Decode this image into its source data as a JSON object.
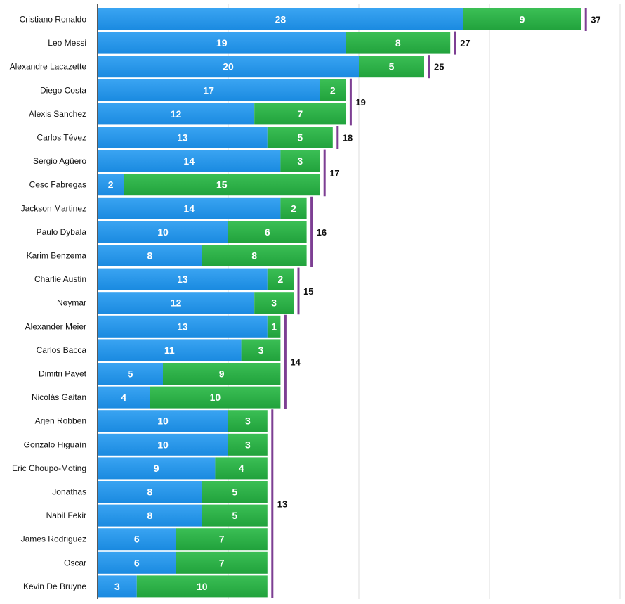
{
  "colors": {
    "goals": "#1a8ae0",
    "goals_light": "#3aa4f2",
    "assists": "#21a23c",
    "assists_light": "#3bbf55",
    "bracket": "#7d3f93",
    "grid": "#dcdcdc",
    "axis": "#222222"
  },
  "chart_data": {
    "type": "bar",
    "orientation": "horizontal",
    "stacked": true,
    "categories": [
      "Cristiano Ronaldo",
      "Leo Messi",
      "Alexandre Lacazette",
      "Diego Costa",
      "Alexis Sanchez",
      "Carlos Tévez",
      "Sergio Agüero",
      "Cesc Fabregas",
      "Jackson Martinez",
      "Paulo Dybala",
      "Karim Benzema",
      "Charlie Austin",
      "Neymar",
      "Alexander Meier",
      "Carlos Bacca",
      "Dimitri Payet",
      "Nicolás Gaitan",
      "Arjen Robben",
      "Gonzalo Higuaín",
      "Eric Choupo-Moting",
      "Jonathas",
      "Nabil Fekir",
      "James Rodriguez",
      "Oscar",
      "Kevin De Bruyne"
    ],
    "series": [
      {
        "values": [
          28,
          19,
          20,
          17,
          12,
          13,
          14,
          2,
          14,
          10,
          8,
          13,
          12,
          13,
          11,
          5,
          4,
          10,
          10,
          9,
          8,
          8,
          6,
          6,
          3
        ]
      },
      {
        "values": [
          9,
          8,
          5,
          2,
          7,
          5,
          3,
          15,
          2,
          6,
          8,
          2,
          3,
          1,
          3,
          9,
          10,
          3,
          3,
          4,
          5,
          5,
          7,
          7,
          10
        ]
      }
    ],
    "total_groups": [
      {
        "total": "37",
        "first": 0,
        "last": 0
      },
      {
        "total": "27",
        "first": 1,
        "last": 1
      },
      {
        "total": "25",
        "first": 2,
        "last": 2
      },
      {
        "total": "19",
        "first": 3,
        "last": 4
      },
      {
        "total": "18",
        "first": 5,
        "last": 5
      },
      {
        "total": "17",
        "first": 6,
        "last": 7
      },
      {
        "total": "16",
        "first": 8,
        "last": 10
      },
      {
        "total": "15",
        "first": 11,
        "last": 12
      },
      {
        "total": "14",
        "first": 13,
        "last": 16
      },
      {
        "total": "13",
        "first": 17,
        "last": 24
      }
    ],
    "xlim": [
      0,
      40
    ],
    "grid": true,
    "title": "",
    "xlabel": "",
    "ylabel": ""
  }
}
